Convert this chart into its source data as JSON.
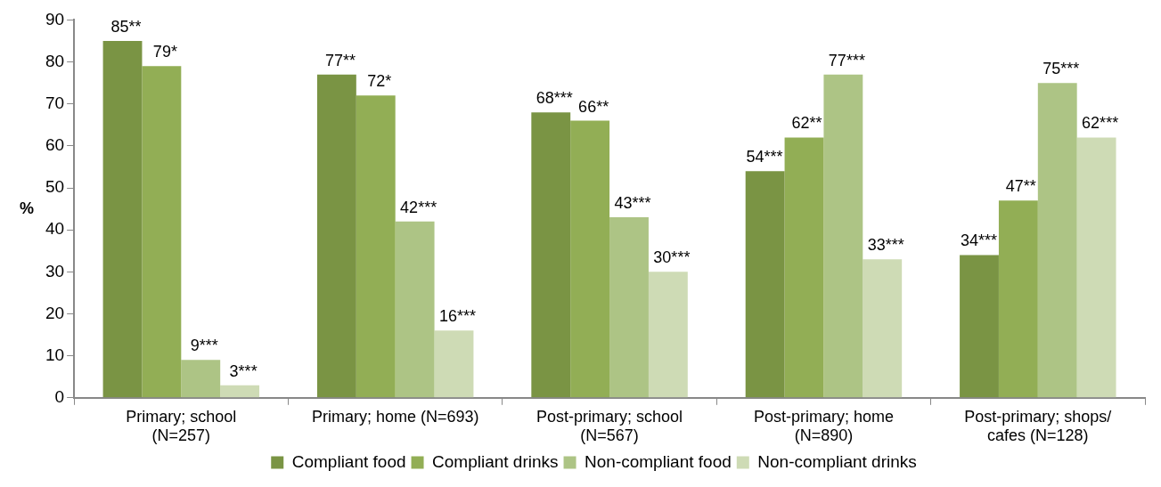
{
  "chart_data": {
    "type": "bar",
    "ylabel": "%",
    "categories": [
      "Primary; school (N=257)",
      "Primary; home (N=693)",
      "Post-primary; school (N=567)",
      "Post-primary; home (N=890)",
      "Post-primary; shops/ cafes (N=128)"
    ],
    "series": [
      {
        "name": "Compliant food",
        "color": "#7a9444",
        "values": [
          85,
          77,
          68,
          54,
          34
        ],
        "value_labels": [
          "85**",
          "77**",
          "68***",
          "54***",
          "34***"
        ]
      },
      {
        "name": "Compliant drinks",
        "color": "#92ae55",
        "values": [
          79,
          72,
          66,
          62,
          47
        ],
        "value_labels": [
          "79*",
          "72*",
          "66**",
          "62**",
          "47**"
        ]
      },
      {
        "name": "Non-compliant food",
        "color": "#adc485",
        "values": [
          9,
          42,
          43,
          77,
          75
        ],
        "value_labels": [
          "9***",
          "42***",
          "43***",
          "77***",
          "75***"
        ]
      },
      {
        "name": "Non-compliant drinks",
        "color": "#cedbb5",
        "values": [
          3,
          16,
          30,
          33,
          62
        ],
        "value_labels": [
          "3***",
          "16***",
          "30***",
          "33***",
          "62***"
        ]
      }
    ],
    "ylim": [
      0,
      90
    ],
    "yticks": [
      0,
      10,
      20,
      30,
      40,
      50,
      60,
      70,
      80,
      90
    ],
    "grid": false,
    "legend": "bottom"
  }
}
